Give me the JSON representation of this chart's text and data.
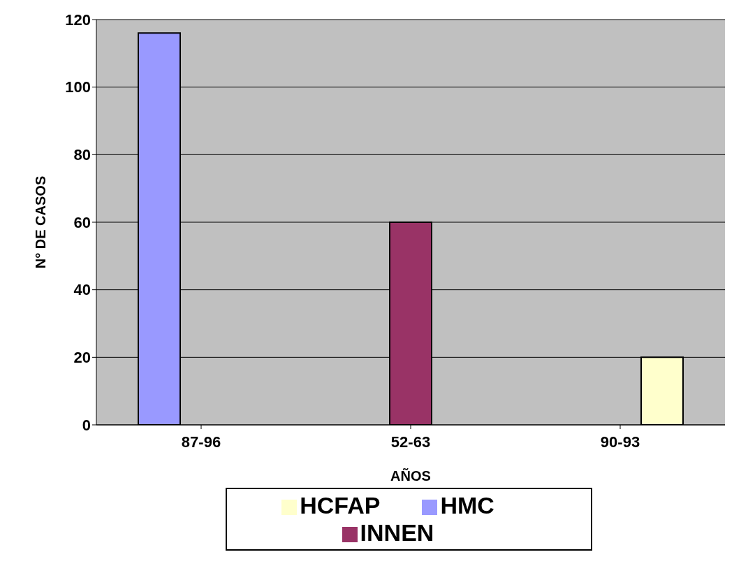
{
  "chart_data": {
    "type": "bar",
    "xlabel": "AÑOS",
    "ylabel": "N° DE CASOS",
    "categories": [
      "87-96",
      "52-63",
      "90-93"
    ],
    "series": [
      {
        "name": "HMC",
        "color": "#9999ff",
        "values": [
          116,
          null,
          null
        ]
      },
      {
        "name": "INNEN",
        "color": "#993366",
        "values": [
          null,
          60,
          null
        ]
      },
      {
        "name": "HCFAP",
        "color": "#ffffcc",
        "values": [
          null,
          null,
          20
        ]
      }
    ],
    "ylim": [
      0,
      120
    ],
    "yticks": [
      0,
      20,
      40,
      60,
      80,
      100,
      120
    ],
    "grid": "y",
    "legend": "bottom"
  }
}
